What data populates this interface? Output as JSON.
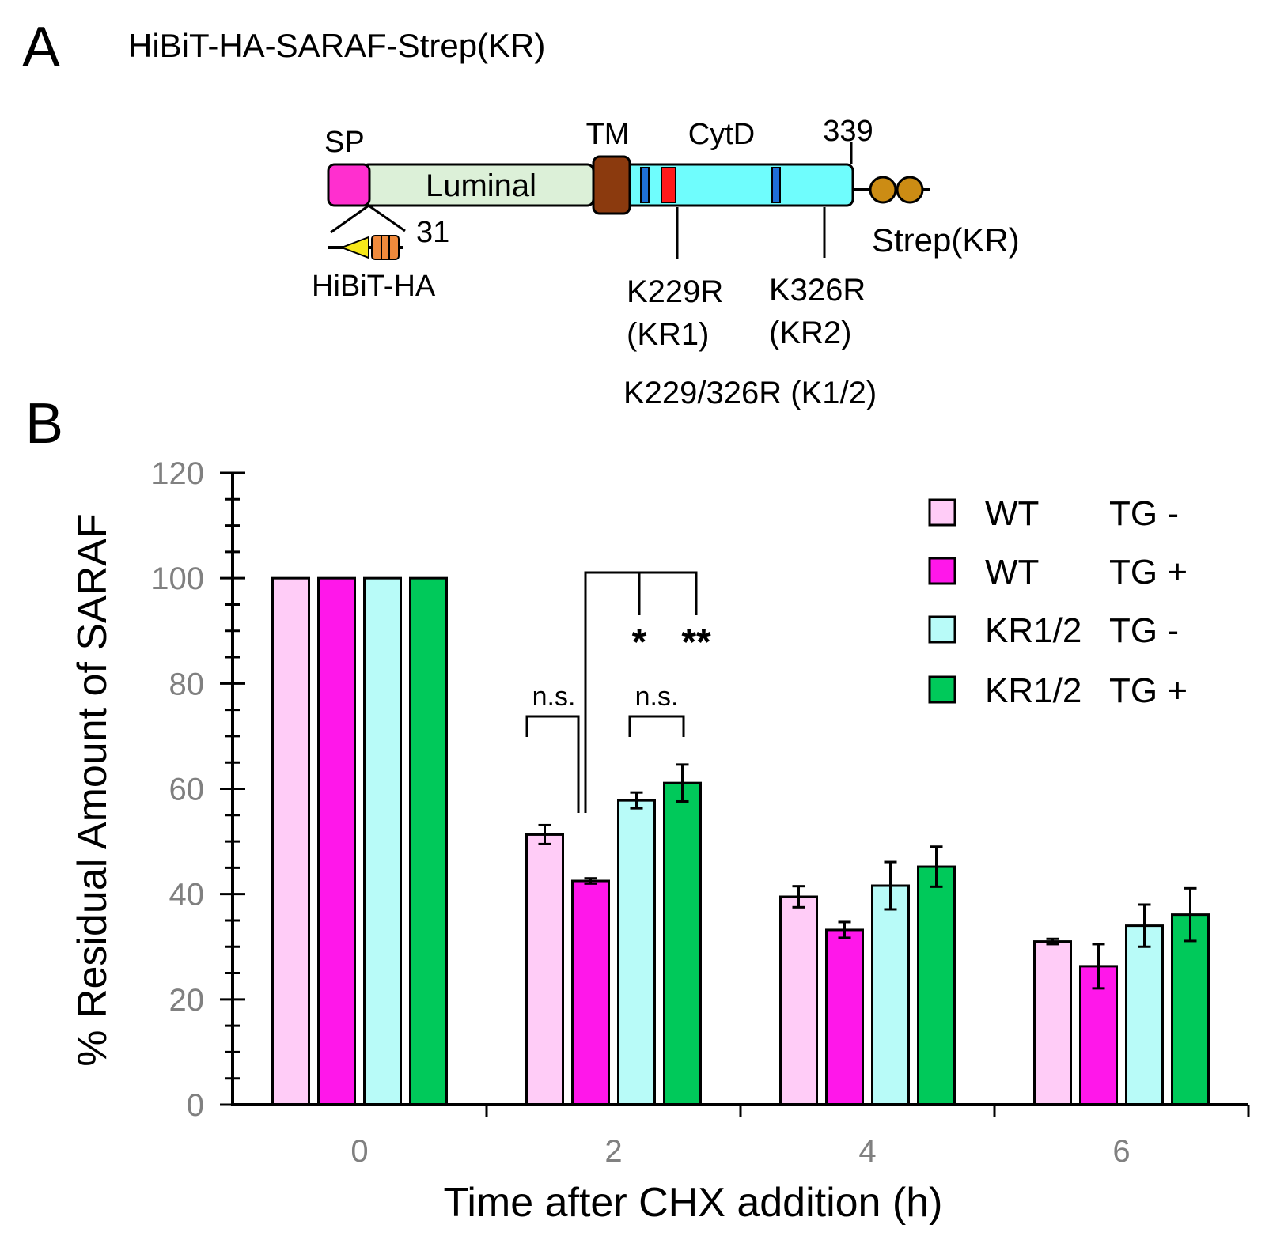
{
  "panel_a": {
    "letter": "A",
    "construct_title": "HiBiT-HA-SARAF-Strep(KR)",
    "domains": {
      "sp": "SP",
      "luminal": "Luminal",
      "tm": "TM",
      "cytd": "CytD",
      "end_residue": "339",
      "cleavage_residue": "31",
      "hibit_ha": "HiBiT-HA",
      "strep": "Strep(KR)"
    },
    "mutations": {
      "kr1_line1": "K229R",
      "kr1_line2": "(KR1)",
      "kr2_line1": "K326R",
      "kr2_line2": "(KR2)",
      "double": "K229/326R (K1/2)"
    },
    "colors": {
      "sp": "#ff2fcf",
      "luminal": "#dcf0d8",
      "tm": "#8b3a0e",
      "cytd": "#6ffdfd",
      "lys_blue": "#1f6fd6",
      "lys_red": "#ff1a1a",
      "strep": "#cc8c14",
      "hibit": "#f7e81a",
      "ha": "#f08a3c"
    }
  },
  "panel_b": {
    "letter": "B"
  },
  "chart_data": {
    "type": "bar",
    "title": "",
    "xlabel": "Time after CHX addition (h)",
    "ylabel": "% Residual Amount of SARAF",
    "ylim": [
      0,
      120
    ],
    "yticks": [
      "0",
      "20",
      "40",
      "60",
      "80",
      "100",
      "120"
    ],
    "categories": [
      "0",
      "2",
      "4",
      "6"
    ],
    "series": [
      {
        "name": "WT TG -",
        "genotype": "WT",
        "treatment": "TG -",
        "color": "#ffccf7",
        "values": [
          100,
          51.3,
          39.5,
          31.0
        ],
        "errors": [
          0,
          1.8,
          2.0,
          0.5
        ]
      },
      {
        "name": "WT TG +",
        "genotype": "WT",
        "treatment": "TG +",
        "color": "#ff17ea",
        "values": [
          100,
          42.5,
          33.2,
          26.3
        ],
        "errors": [
          0,
          0.5,
          1.5,
          4.2
        ]
      },
      {
        "name": "KR1/2 TG -",
        "genotype": "KR1/2",
        "treatment": "TG -",
        "color": "#b8fbf8",
        "values": [
          100,
          57.8,
          41.6,
          34.0
        ],
        "errors": [
          0,
          1.5,
          4.5,
          4.0
        ]
      },
      {
        "name": "KR1/2 TG +",
        "genotype": "KR1/2",
        "treatment": "TG +",
        "color": "#00c95a",
        "values": [
          100,
          61.1,
          45.2,
          36.1
        ],
        "errors": [
          0,
          3.5,
          3.8,
          5.0
        ]
      }
    ],
    "annotations": [
      {
        "label": "n.s.",
        "category": "2",
        "between": [
          "WT TG -",
          "WT TG +"
        ]
      },
      {
        "label": "n.s.",
        "category": "2",
        "between": [
          "KR1/2 TG -",
          "KR1/2 TG +"
        ]
      },
      {
        "label": "*",
        "category": "2",
        "between": [
          "WT TG +",
          "KR1/2 TG -"
        ]
      },
      {
        "label": "**",
        "category": "2",
        "between": [
          "WT TG +",
          "KR1/2 TG +"
        ]
      }
    ],
    "legend_position": "top-right"
  }
}
